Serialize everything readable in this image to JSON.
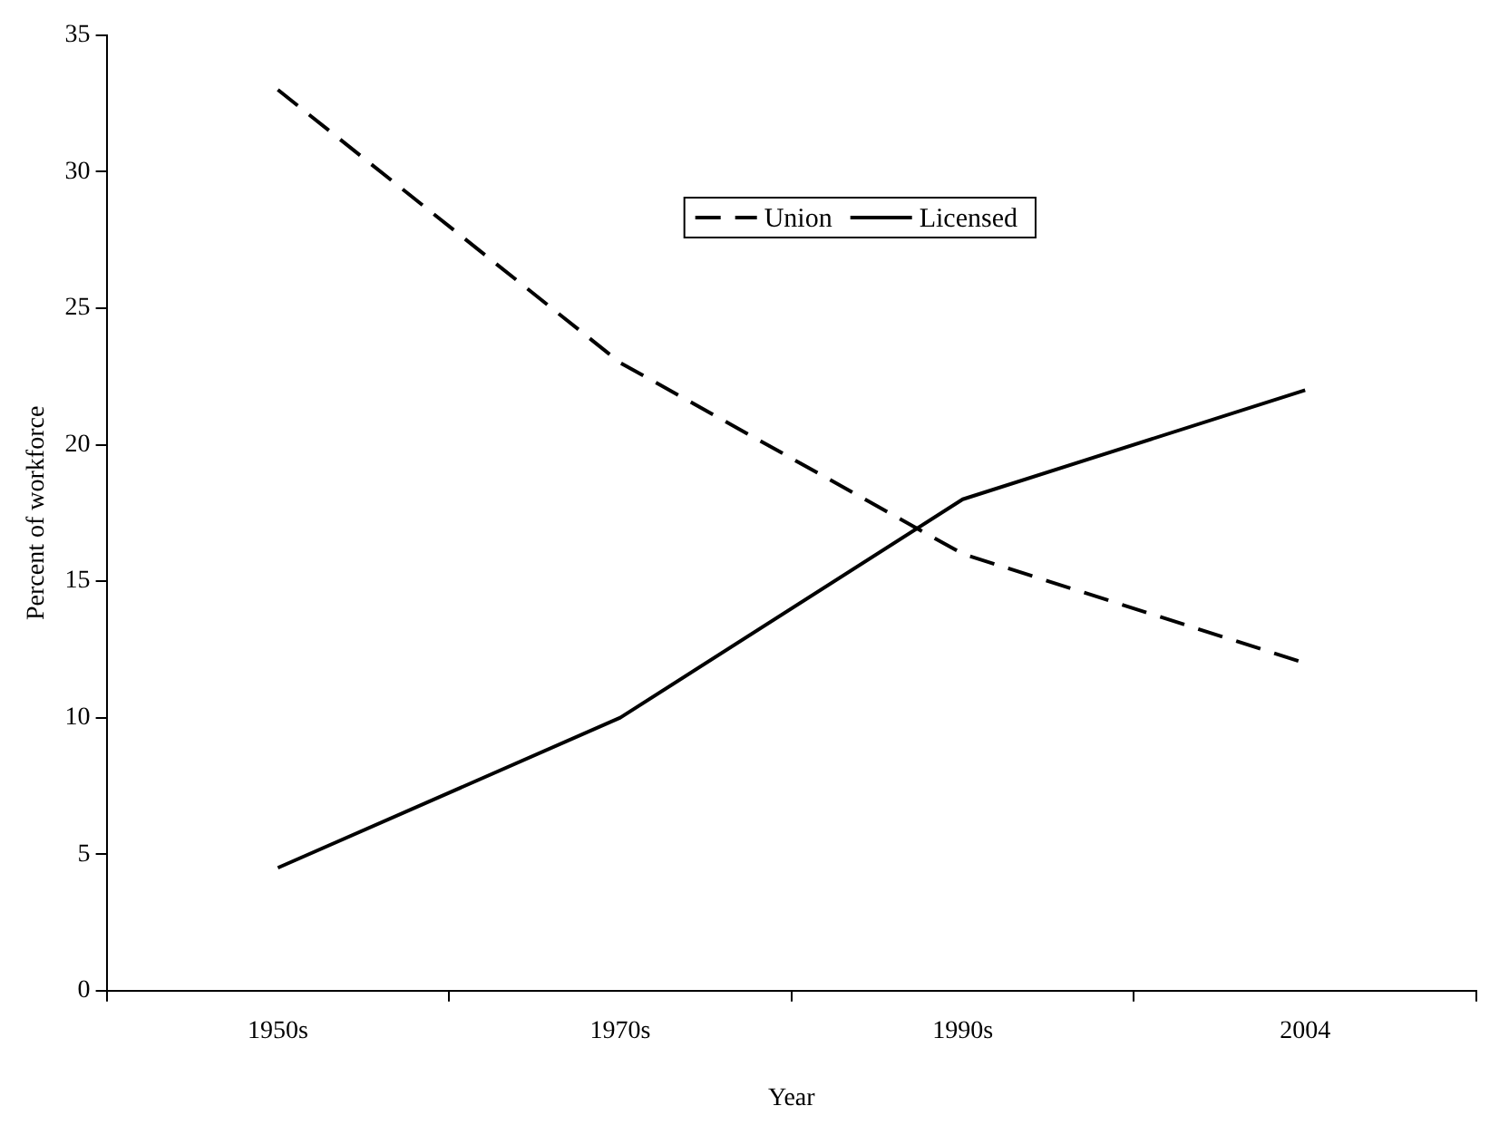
{
  "chart_data": {
    "type": "line",
    "xlabel": "Year",
    "ylabel": "Percent of workforce",
    "categories": [
      "1950s",
      "1970s",
      "1990s",
      "2004"
    ],
    "series": [
      {
        "name": "Union",
        "color": "#000000",
        "values": [
          33,
          23,
          16,
          12
        ],
        "line_style": "dashed"
      },
      {
        "name": "Licensed",
        "color": "#000000",
        "values": [
          4.5,
          10,
          18,
          22
        ],
        "line_style": "solid"
      }
    ],
    "ylim": [
      0,
      35
    ],
    "yticks": [
      0,
      5,
      10,
      15,
      20,
      25,
      30,
      35
    ],
    "grid": false,
    "legend": "top",
    "marker": "none"
  }
}
